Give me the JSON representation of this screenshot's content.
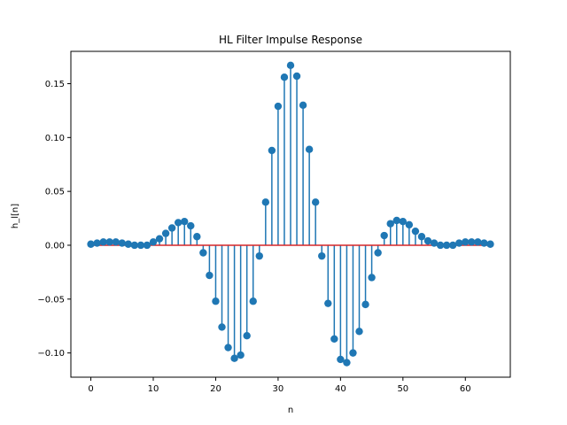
{
  "chart_data": {
    "type": "stem",
    "title": "HL Filter Impulse Response",
    "xlabel": "n",
    "ylabel": "h_l[n]",
    "xlim": [
      -3.2,
      67.2
    ],
    "ylim": [
      -0.1225,
      0.18
    ],
    "x_ticks": [
      0,
      10,
      20,
      30,
      40,
      50,
      60
    ],
    "x_tick_labels": [
      "0",
      "10",
      "20",
      "30",
      "40",
      "50",
      "60"
    ],
    "y_ticks": [
      -0.1,
      -0.05,
      0.0,
      0.05,
      0.1,
      0.15
    ],
    "y_tick_labels": [
      "−0.10",
      "−0.05",
      "0.00",
      "0.05",
      "0.10",
      "0.15"
    ],
    "grid": false,
    "colors": {
      "stem": "#1f77b4",
      "baseline": "#d62728"
    },
    "x": [
      0,
      1,
      2,
      3,
      4,
      5,
      6,
      7,
      8,
      9,
      10,
      11,
      12,
      13,
      14,
      15,
      16,
      17,
      18,
      19,
      20,
      21,
      22,
      23,
      24,
      25,
      26,
      27,
      28,
      29,
      30,
      31,
      32,
      33,
      34,
      35,
      36,
      37,
      38,
      39,
      40,
      41,
      42,
      43,
      44,
      45,
      46,
      47,
      48,
      49,
      50,
      51,
      52,
      53,
      54,
      55,
      56,
      57,
      58,
      59,
      60,
      61,
      62,
      63,
      64
    ],
    "values": [
      0.001,
      0.002,
      0.003,
      0.003,
      0.003,
      0.002,
      0.001,
      0.0,
      0.0,
      0.0,
      0.003,
      0.006,
      0.011,
      0.016,
      0.021,
      0.022,
      0.018,
      0.008,
      -0.007,
      -0.028,
      -0.052,
      -0.076,
      -0.095,
      -0.105,
      -0.102,
      -0.084,
      -0.052,
      -0.01,
      0.04,
      0.088,
      0.129,
      0.156,
      0.167,
      0.157,
      0.13,
      0.089,
      0.04,
      -0.01,
      -0.054,
      -0.087,
      -0.106,
      -0.109,
      -0.1,
      -0.08,
      -0.055,
      -0.03,
      -0.007,
      0.009,
      0.02,
      0.023,
      0.022,
      0.019,
      0.013,
      0.008,
      0.004,
      0.002,
      0.0,
      0.0,
      0.0,
      0.002,
      0.003,
      0.003,
      0.003,
      0.002,
      0.001
    ]
  }
}
